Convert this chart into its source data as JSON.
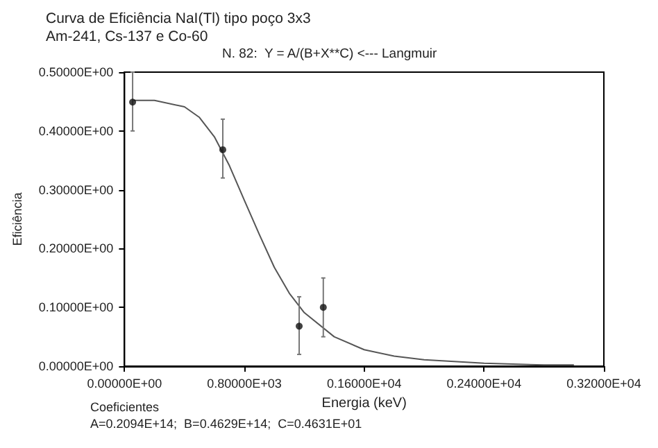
{
  "chart_data": {
    "type": "scatter",
    "title": "Curva de Eficiência NaI(Tl) tipo poço 3x3",
    "subtitle": "Am-241, Cs-137 e Co-60",
    "xlabel": "Energia (keV)",
    "ylabel": "Eficiência",
    "annotations": [
      "N. 82:  Y = A/(B+X**C) <--- Langmuir",
      "Coeficientes",
      "A=0.2094E+14;  B=0.4629E+14;  C=0.4631E+01"
    ],
    "series": [
      {
        "color": "#111111",
        "x": [
          54,
          656,
          1166,
          1327
        ],
        "values": [
          0.449,
          0.368,
          0.068,
          0.1
        ],
        "errors": [
          [
            0.4,
            0.5
          ],
          [
            0.32,
            0.42
          ],
          [
            0.02,
            0.118
          ],
          [
            0.05,
            0.15
          ]
        ],
        "marker": "circle"
      },
      {
        "type": "line",
        "color": "#555555",
        "x": [
          60,
          200,
          400,
          500,
          600,
          700,
          800,
          900,
          1000,
          1100,
          1200,
          1400,
          1600,
          1800,
          2000,
          2400,
          2800,
          3000
        ],
        "values": [
          0.452,
          0.452,
          0.441,
          0.423,
          0.39,
          0.341,
          0.282,
          0.224,
          0.168,
          0.124,
          0.091,
          0.05,
          0.028,
          0.017,
          0.011,
          0.005,
          0.002,
          0.002
        ],
        "marker": "none",
        "line_style": "solid"
      }
    ],
    "xlim": [
      0,
      3200
    ],
    "xticks": [
      {
        "value": 0,
        "label": "0.00000E+00"
      },
      {
        "value": 800,
        "label": "0.80000E+03"
      },
      {
        "value": 1600,
        "label": "0.16000E+04"
      },
      {
        "value": 2400,
        "label": "0.24000E+04"
      },
      {
        "value": 3200,
        "label": "0.32000E+04"
      }
    ],
    "ylim": [
      0,
      0.5
    ],
    "yticks": [
      {
        "value": 0,
        "label": "0.00000E+00"
      },
      {
        "value": 0.1,
        "label": "0.10000E+00"
      },
      {
        "value": 0.2,
        "label": "0.20000E+00"
      },
      {
        "value": 0.3,
        "label": "0.30000E+00"
      },
      {
        "value": 0.4,
        "label": "0.40000E+00"
      },
      {
        "value": 0.5,
        "label": "0.50000E+00"
      }
    ],
    "grid": false
  }
}
